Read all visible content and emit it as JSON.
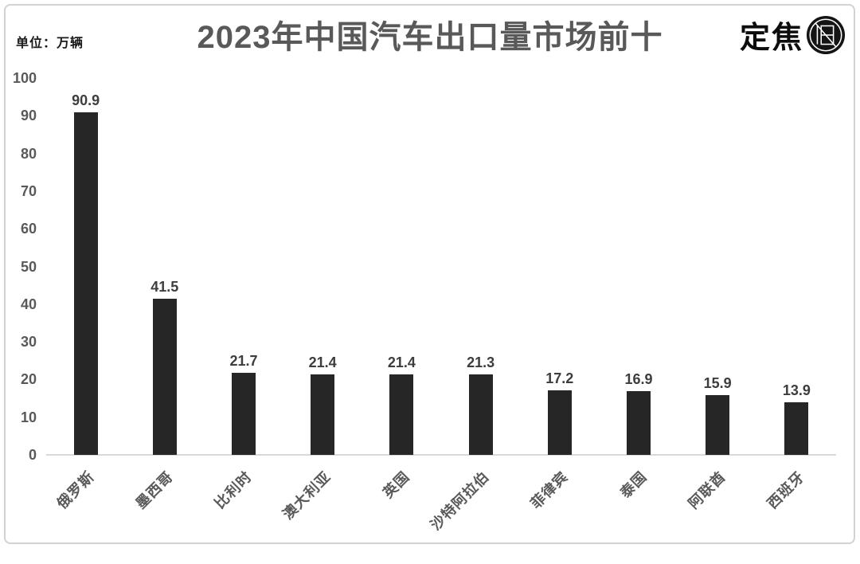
{
  "header": {
    "unit_label": "单位：万辆",
    "title": "2023年中国汽车出口量市场前十",
    "brand": {
      "name": "定焦",
      "icon": "lens-logo-icon"
    }
  },
  "chart_data": {
    "type": "bar",
    "title": "2023年中国汽车出口量市场前十",
    "unit": "万辆",
    "categories": [
      "俄罗斯",
      "墨西哥",
      "比利时",
      "澳大利亚",
      "英国",
      "沙特阿拉伯",
      "菲律宾",
      "泰国",
      "阿联酋",
      "西班牙"
    ],
    "values": [
      90.9,
      41.5,
      21.7,
      21.4,
      21.4,
      21.3,
      17.2,
      16.9,
      15.9,
      13.9
    ],
    "value_labels": [
      "90.9",
      "41.5",
      "21.7",
      "21.4",
      "21.4",
      "21.3",
      "17.2",
      "16.9",
      "15.9",
      "13.9"
    ],
    "xlabel": "",
    "ylabel": "",
    "ylim": [
      0,
      100
    ],
    "y_ticks": [
      0,
      10,
      20,
      30,
      40,
      50,
      60,
      70,
      80,
      90,
      100
    ],
    "grid": false,
    "legend": false,
    "x_label_rotation_deg": -45
  },
  "colors": {
    "bar": "#262626",
    "title": "#595959",
    "axis_labels": "#595959",
    "value_labels": "#3d3d3d",
    "baseline": "#d9d9d9",
    "frame_border": "#d2d2d2",
    "brand": "#0d0d0d",
    "background": "#ffffff"
  }
}
